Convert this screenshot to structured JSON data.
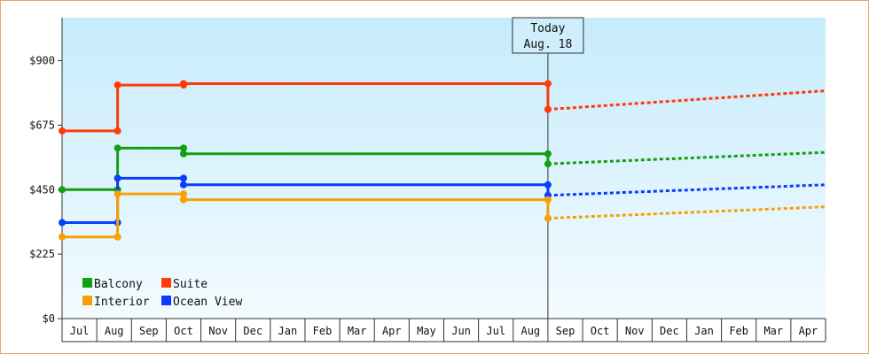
{
  "chart_data": {
    "type": "line",
    "title": "",
    "xlabel": "",
    "ylabel": "",
    "ylim": [
      0,
      1050
    ],
    "y_ticks": [
      {
        "value": 0,
        "label": "$0"
      },
      {
        "value": 225,
        "label": "$225"
      },
      {
        "value": 450,
        "label": "$450"
      },
      {
        "value": 675,
        "label": "$675"
      },
      {
        "value": 900,
        "label": "$900"
      }
    ],
    "x_labels": [
      "Jul",
      "Aug",
      "Sep",
      "Oct",
      "Nov",
      "Dec",
      "Jan",
      "Feb",
      "Mar",
      "Apr",
      "May",
      "Jun",
      "Jul",
      "Aug",
      "Sep",
      "Oct",
      "Nov",
      "Dec",
      "Jan",
      "Feb",
      "Mar",
      "Apr"
    ],
    "x_range": [
      0,
      22
    ],
    "today": {
      "label": "Today",
      "date": "Aug. 18",
      "x": 14.0
    },
    "legend": {
      "placement": "bottom-left"
    },
    "series": [
      {
        "name": "Suite",
        "color": "#ff3a0a",
        "points": [
          [
            0,
            655
          ],
          [
            1.6,
            655
          ],
          [
            1.6,
            815
          ],
          [
            3.5,
            815
          ],
          [
            3.5,
            820
          ],
          [
            14.0,
            820
          ],
          [
            14.0,
            730
          ]
        ],
        "markers": [
          [
            0,
            655
          ],
          [
            1.6,
            655
          ],
          [
            1.6,
            815
          ],
          [
            3.5,
            815
          ],
          [
            3.5,
            820
          ],
          [
            14.0,
            820
          ],
          [
            14.0,
            730
          ]
        ],
        "forecast": [
          [
            14.0,
            730
          ],
          [
            22,
            795
          ]
        ]
      },
      {
        "name": "Balcony",
        "color": "#12a012",
        "points": [
          [
            0,
            450
          ],
          [
            1.6,
            450
          ],
          [
            1.6,
            595
          ],
          [
            3.5,
            595
          ],
          [
            3.5,
            575
          ],
          [
            14.0,
            575
          ],
          [
            14.0,
            540
          ]
        ],
        "markers": [
          [
            0,
            450
          ],
          [
            1.6,
            450
          ],
          [
            1.6,
            595
          ],
          [
            3.5,
            595
          ],
          [
            3.5,
            575
          ],
          [
            14.0,
            575
          ],
          [
            14.0,
            540
          ]
        ],
        "forecast": [
          [
            14.0,
            540
          ],
          [
            22,
            580
          ]
        ]
      },
      {
        "name": "Ocean View",
        "color": "#0a3cff",
        "points": [
          [
            0,
            335
          ],
          [
            1.6,
            335
          ],
          [
            1.6,
            490
          ],
          [
            3.5,
            490
          ],
          [
            3.5,
            467
          ],
          [
            14.0,
            467
          ],
          [
            14.0,
            430
          ]
        ],
        "markers": [
          [
            0,
            335
          ],
          [
            1.6,
            335
          ],
          [
            1.6,
            490
          ],
          [
            3.5,
            490
          ],
          [
            3.5,
            467
          ],
          [
            14.0,
            467
          ],
          [
            14.0,
            430
          ]
        ],
        "forecast": [
          [
            14.0,
            430
          ],
          [
            22,
            467
          ]
        ]
      },
      {
        "name": "Interior",
        "color": "#f7a000",
        "points": [
          [
            0,
            285
          ],
          [
            1.6,
            285
          ],
          [
            1.6,
            435
          ],
          [
            3.5,
            435
          ],
          [
            3.5,
            415
          ],
          [
            14.0,
            415
          ],
          [
            14.0,
            350
          ]
        ],
        "markers": [
          [
            0,
            285
          ],
          [
            1.6,
            285
          ],
          [
            1.6,
            435
          ],
          [
            3.5,
            435
          ],
          [
            3.5,
            415
          ],
          [
            14.0,
            415
          ],
          [
            14.0,
            350
          ]
        ],
        "forecast": [
          [
            14.0,
            350
          ],
          [
            22,
            390
          ]
        ]
      }
    ],
    "legend_order": [
      "Balcony",
      "Suite",
      "Interior",
      "Ocean View"
    ],
    "colors": {
      "frame": "#e7a85a",
      "bg_top": "#c8ecfb",
      "bg_bottom": "#f2fbff"
    }
  }
}
